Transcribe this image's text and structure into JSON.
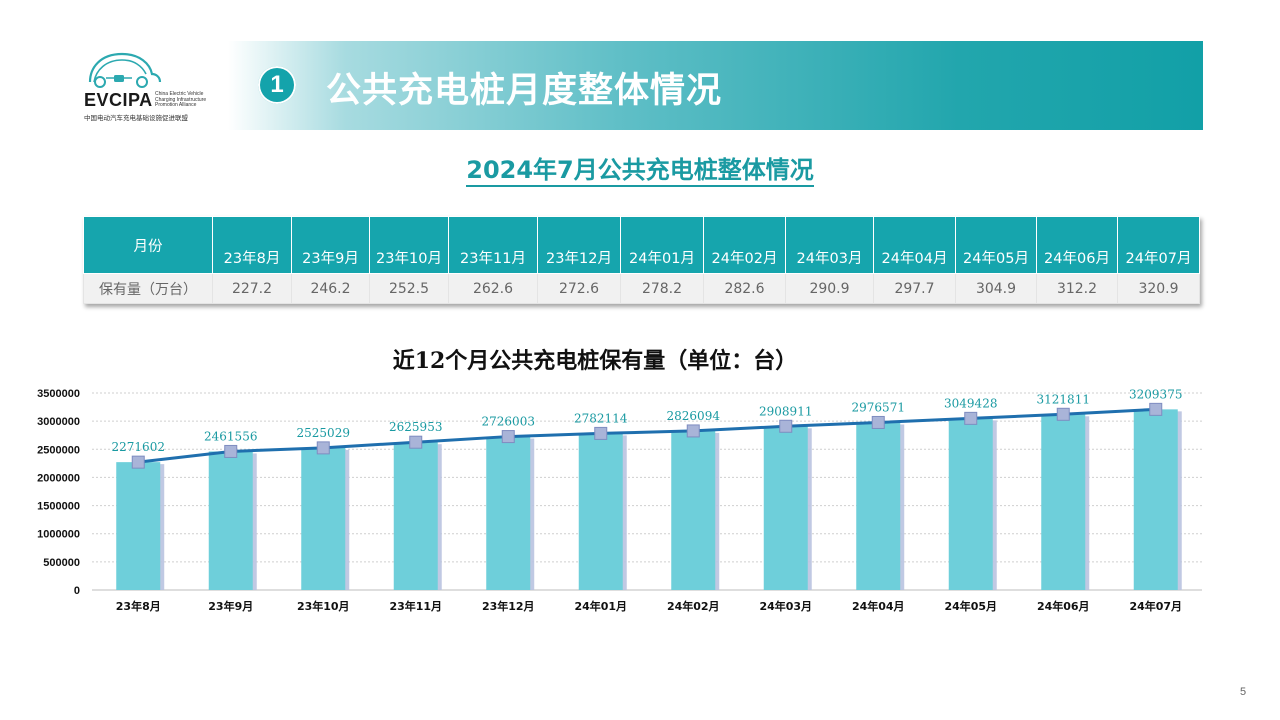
{
  "logo": {
    "brand": "EVCIPA",
    "en_lines": [
      "China Electric Vehicle",
      "Charging Infrastructure",
      "Promotion Alliance"
    ],
    "cn": "中国电动汽车充电基础设施促进联盟"
  },
  "section": {
    "number": "1",
    "title": "公共充电桩月度整体情况"
  },
  "subtitle": "2024年7月公共充电桩整体情况",
  "table": {
    "header_label": "月份",
    "row_label": "保有量（万台）",
    "months": [
      "23年8月",
      "23年9月",
      "23年10月",
      "23年11月",
      "23年12月",
      "24年01月",
      "24年02月",
      "24年03月",
      "24年04月",
      "24年05月",
      "24年06月",
      "24年07月"
    ],
    "values": [
      "227.2",
      "246.2",
      "252.5",
      "262.6",
      "272.6",
      "278.2",
      "282.6",
      "290.9",
      "297.7",
      "304.9",
      "312.2",
      "320.9"
    ]
  },
  "chart_data": {
    "type": "bar",
    "title": "近12个月公共充电桩保有量（单位：台）",
    "categories": [
      "23年8月",
      "23年9月",
      "23年10月",
      "23年11月",
      "23年12月",
      "24年01月",
      "24年02月",
      "24年03月",
      "24年04月",
      "24年05月",
      "24年06月",
      "24年07月"
    ],
    "values": [
      2271602,
      2461556,
      2525029,
      2625953,
      2726003,
      2782114,
      2826094,
      2908911,
      2976571,
      3049428,
      3121811,
      3209375
    ],
    "overlay": "line",
    "ylim": [
      0,
      3500000
    ],
    "yticks": [
      0,
      500000,
      1000000,
      1500000,
      2000000,
      2500000,
      3000000,
      3500000
    ],
    "grid": true,
    "colors": {
      "bar": "#6ecfda",
      "line": "#1f6fae",
      "marker": "#a9b4d8",
      "label": "#1a9aa2"
    }
  },
  "page_number": "5"
}
